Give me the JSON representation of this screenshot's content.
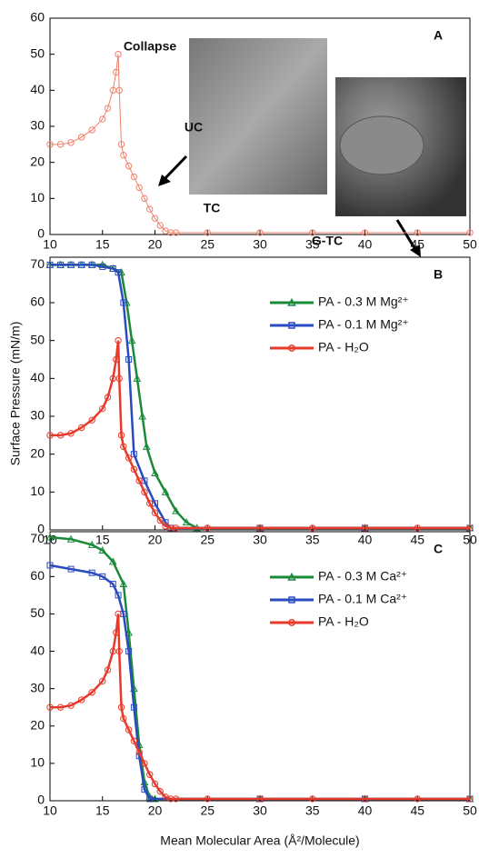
{
  "chart_data": [
    {
      "type": "line",
      "label": "A",
      "annotations": [
        "Collapse",
        "UC",
        "TC",
        "G-TC"
      ],
      "xlim": [
        10,
        50
      ],
      "xticks": [
        10,
        15,
        20,
        25,
        30,
        35,
        40,
        45,
        50
      ],
      "ylim": [
        0,
        60
      ],
      "yticks": [
        0,
        10,
        20,
        30,
        40,
        50,
        60
      ],
      "line_width": 1,
      "legend": false,
      "series": [
        {
          "name": "PA - H₂O",
          "color": "#f0806c",
          "marker": "circle",
          "x": [
            10,
            11,
            12,
            13,
            14,
            15,
            15.5,
            16,
            16.3,
            16.5,
            16.6,
            16.8,
            17,
            17.5,
            18,
            18.5,
            19,
            19.5,
            20,
            20.5,
            21,
            21.5,
            22,
            25,
            30,
            35,
            40,
            45,
            50
          ],
          "values": [
            25,
            25,
            25.5,
            27,
            29,
            32,
            35,
            40,
            45,
            50,
            40,
            25,
            22,
            19,
            16,
            13,
            10,
            7,
            4.5,
            2.5,
            1,
            0.5,
            0.5,
            0.5,
            0.5,
            0.5,
            0.5,
            0.5,
            0.5
          ]
        }
      ]
    },
    {
      "type": "line",
      "label": "B",
      "ylabel": "Surface Pressure (mN/m)",
      "xlim": [
        10,
        50
      ],
      "xticks": [
        10,
        15,
        20,
        25,
        30,
        35,
        40,
        45,
        50
      ],
      "ylim": [
        0,
        72
      ],
      "yticks": [
        0,
        10,
        20,
        30,
        40,
        50,
        60,
        70
      ],
      "line_width": 2.5,
      "legend": true,
      "series": [
        {
          "name": "PA - 0.3 M Mg²⁺",
          "color": "#1a8a3a",
          "marker": "triangle",
          "x": [
            10,
            11,
            12,
            13,
            14,
            15,
            16,
            16.8,
            17.3,
            17.8,
            18.3,
            18.8,
            19.2,
            20,
            21,
            22,
            23,
            24,
            30,
            40,
            50
          ],
          "values": [
            70,
            70,
            70,
            70,
            70,
            70,
            69,
            68,
            60,
            50,
            40,
            30,
            22,
            15,
            10,
            5,
            2,
            0.5,
            0.5,
            0.5,
            0.5
          ]
        },
        {
          "name": "PA - 0.1 M Mg²⁺",
          "color": "#2a4ac0",
          "marker": "square",
          "x": [
            10,
            11,
            12,
            13,
            14,
            15,
            16,
            16.5,
            17,
            17.5,
            18,
            19,
            20,
            21,
            21.5,
            30,
            40,
            50
          ],
          "values": [
            70,
            70,
            70,
            70,
            70,
            69.5,
            69,
            68,
            60,
            45,
            20,
            13,
            7,
            2,
            0.5,
            0.5,
            0.5,
            0.5
          ]
        },
        {
          "name": "PA - H₂O",
          "color": "#e83a2a",
          "marker": "circle",
          "x": [
            10,
            11,
            12,
            13,
            14,
            15,
            15.5,
            16,
            16.3,
            16.5,
            16.6,
            16.8,
            17,
            17.5,
            18,
            18.5,
            19,
            19.5,
            20,
            20.5,
            21,
            21.5,
            22,
            25,
            30,
            35,
            40,
            45,
            50
          ],
          "values": [
            25,
            25,
            25.5,
            27,
            29,
            32,
            35,
            40,
            45,
            50,
            40,
            25,
            22,
            19,
            16,
            13,
            10,
            7,
            4.5,
            2.5,
            1,
            0.5,
            0.5,
            0.5,
            0.5,
            0.5,
            0.5,
            0.5,
            0.5
          ]
        }
      ]
    },
    {
      "type": "line",
      "label": "C",
      "xlabel": "Mean Molecular Area (Å²/Molecule)",
      "xlim": [
        10,
        50
      ],
      "xticks": [
        10,
        15,
        20,
        25,
        30,
        35,
        40,
        45,
        50
      ],
      "ylim": [
        0,
        72
      ],
      "yticks": [
        0,
        10,
        20,
        30,
        40,
        50,
        60,
        70
      ],
      "line_width": 2.5,
      "legend": true,
      "series": [
        {
          "name": "PA - 0.3 M Ca²⁺",
          "color": "#1a8a3a",
          "marker": "triangle",
          "x": [
            10,
            12,
            14,
            15,
            16,
            17,
            17.5,
            18,
            18.5,
            19,
            19.5,
            20,
            30,
            40,
            50
          ],
          "values": [
            70.5,
            70,
            68.5,
            67,
            64,
            58,
            45,
            30,
            15,
            5,
            1,
            0.5,
            0.5,
            0.5,
            0.5
          ]
        },
        {
          "name": "PA - 0.1 M Ca²⁺",
          "color": "#2a4ac0",
          "marker": "square",
          "x": [
            10,
            12,
            14,
            15,
            16,
            16.5,
            17,
            17.5,
            18,
            18.5,
            19,
            19.5,
            30,
            40,
            50
          ],
          "values": [
            63,
            62,
            61,
            60,
            58,
            55,
            50,
            40,
            25,
            12,
            3,
            0.5,
            0.5,
            0.5,
            0.5
          ]
        },
        {
          "name": "PA - H₂O",
          "color": "#e83a2a",
          "marker": "circle",
          "x": [
            10,
            11,
            12,
            13,
            14,
            15,
            15.5,
            16,
            16.3,
            16.5,
            16.6,
            16.8,
            17,
            17.5,
            18,
            18.5,
            19,
            19.5,
            20,
            20.5,
            21,
            21.5,
            22,
            25,
            30,
            35,
            40,
            45,
            50
          ],
          "values": [
            25,
            25,
            25.5,
            27,
            29,
            32,
            35,
            40,
            45,
            50,
            40,
            25,
            22,
            19,
            16,
            13,
            10,
            7,
            4.5,
            2.5,
            1,
            0.5,
            0.5,
            0.5,
            0.5,
            0.5,
            0.5,
            0.5,
            0.5
          ]
        }
      ]
    }
  ]
}
